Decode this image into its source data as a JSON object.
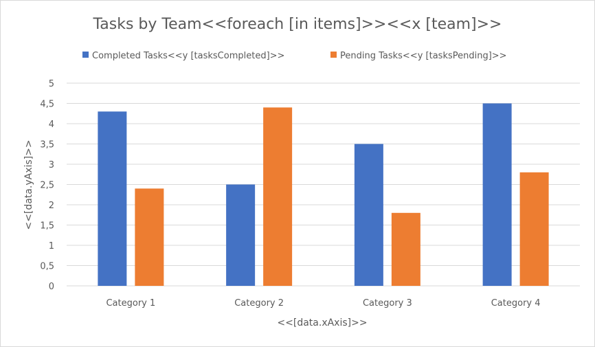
{
  "chart_data": {
    "type": "bar",
    "title": "Tasks by Team<<foreach [in items]>><<x [team]>>",
    "xlabel": "<<[data.xAxis]>>",
    "ylabel": "<<[data.yAxis]>>",
    "categories": [
      "Category 1",
      "Category 2",
      "Category 3",
      "Category 4"
    ],
    "series": [
      {
        "name": "Completed Tasks<<y [tasksCompleted]>>",
        "color": "#4472c4",
        "values": [
          4.3,
          2.5,
          3.5,
          4.5
        ]
      },
      {
        "name": "Pending Tasks<<y [tasksPending]>>",
        "color": "#ed7d31",
        "values": [
          2.4,
          4.4,
          1.8,
          2.8
        ]
      }
    ],
    "ylim": [
      0,
      5
    ],
    "yticks": [
      0,
      0.5,
      1,
      1.5,
      2,
      2.5,
      3,
      3.5,
      4,
      4.5,
      5
    ],
    "ytick_labels": [
      "0",
      "0,5",
      "1",
      "1,5",
      "2",
      "2,5",
      "3",
      "3,5",
      "4",
      "4,5",
      "5"
    ],
    "grid": true,
    "legend_position": "top"
  }
}
